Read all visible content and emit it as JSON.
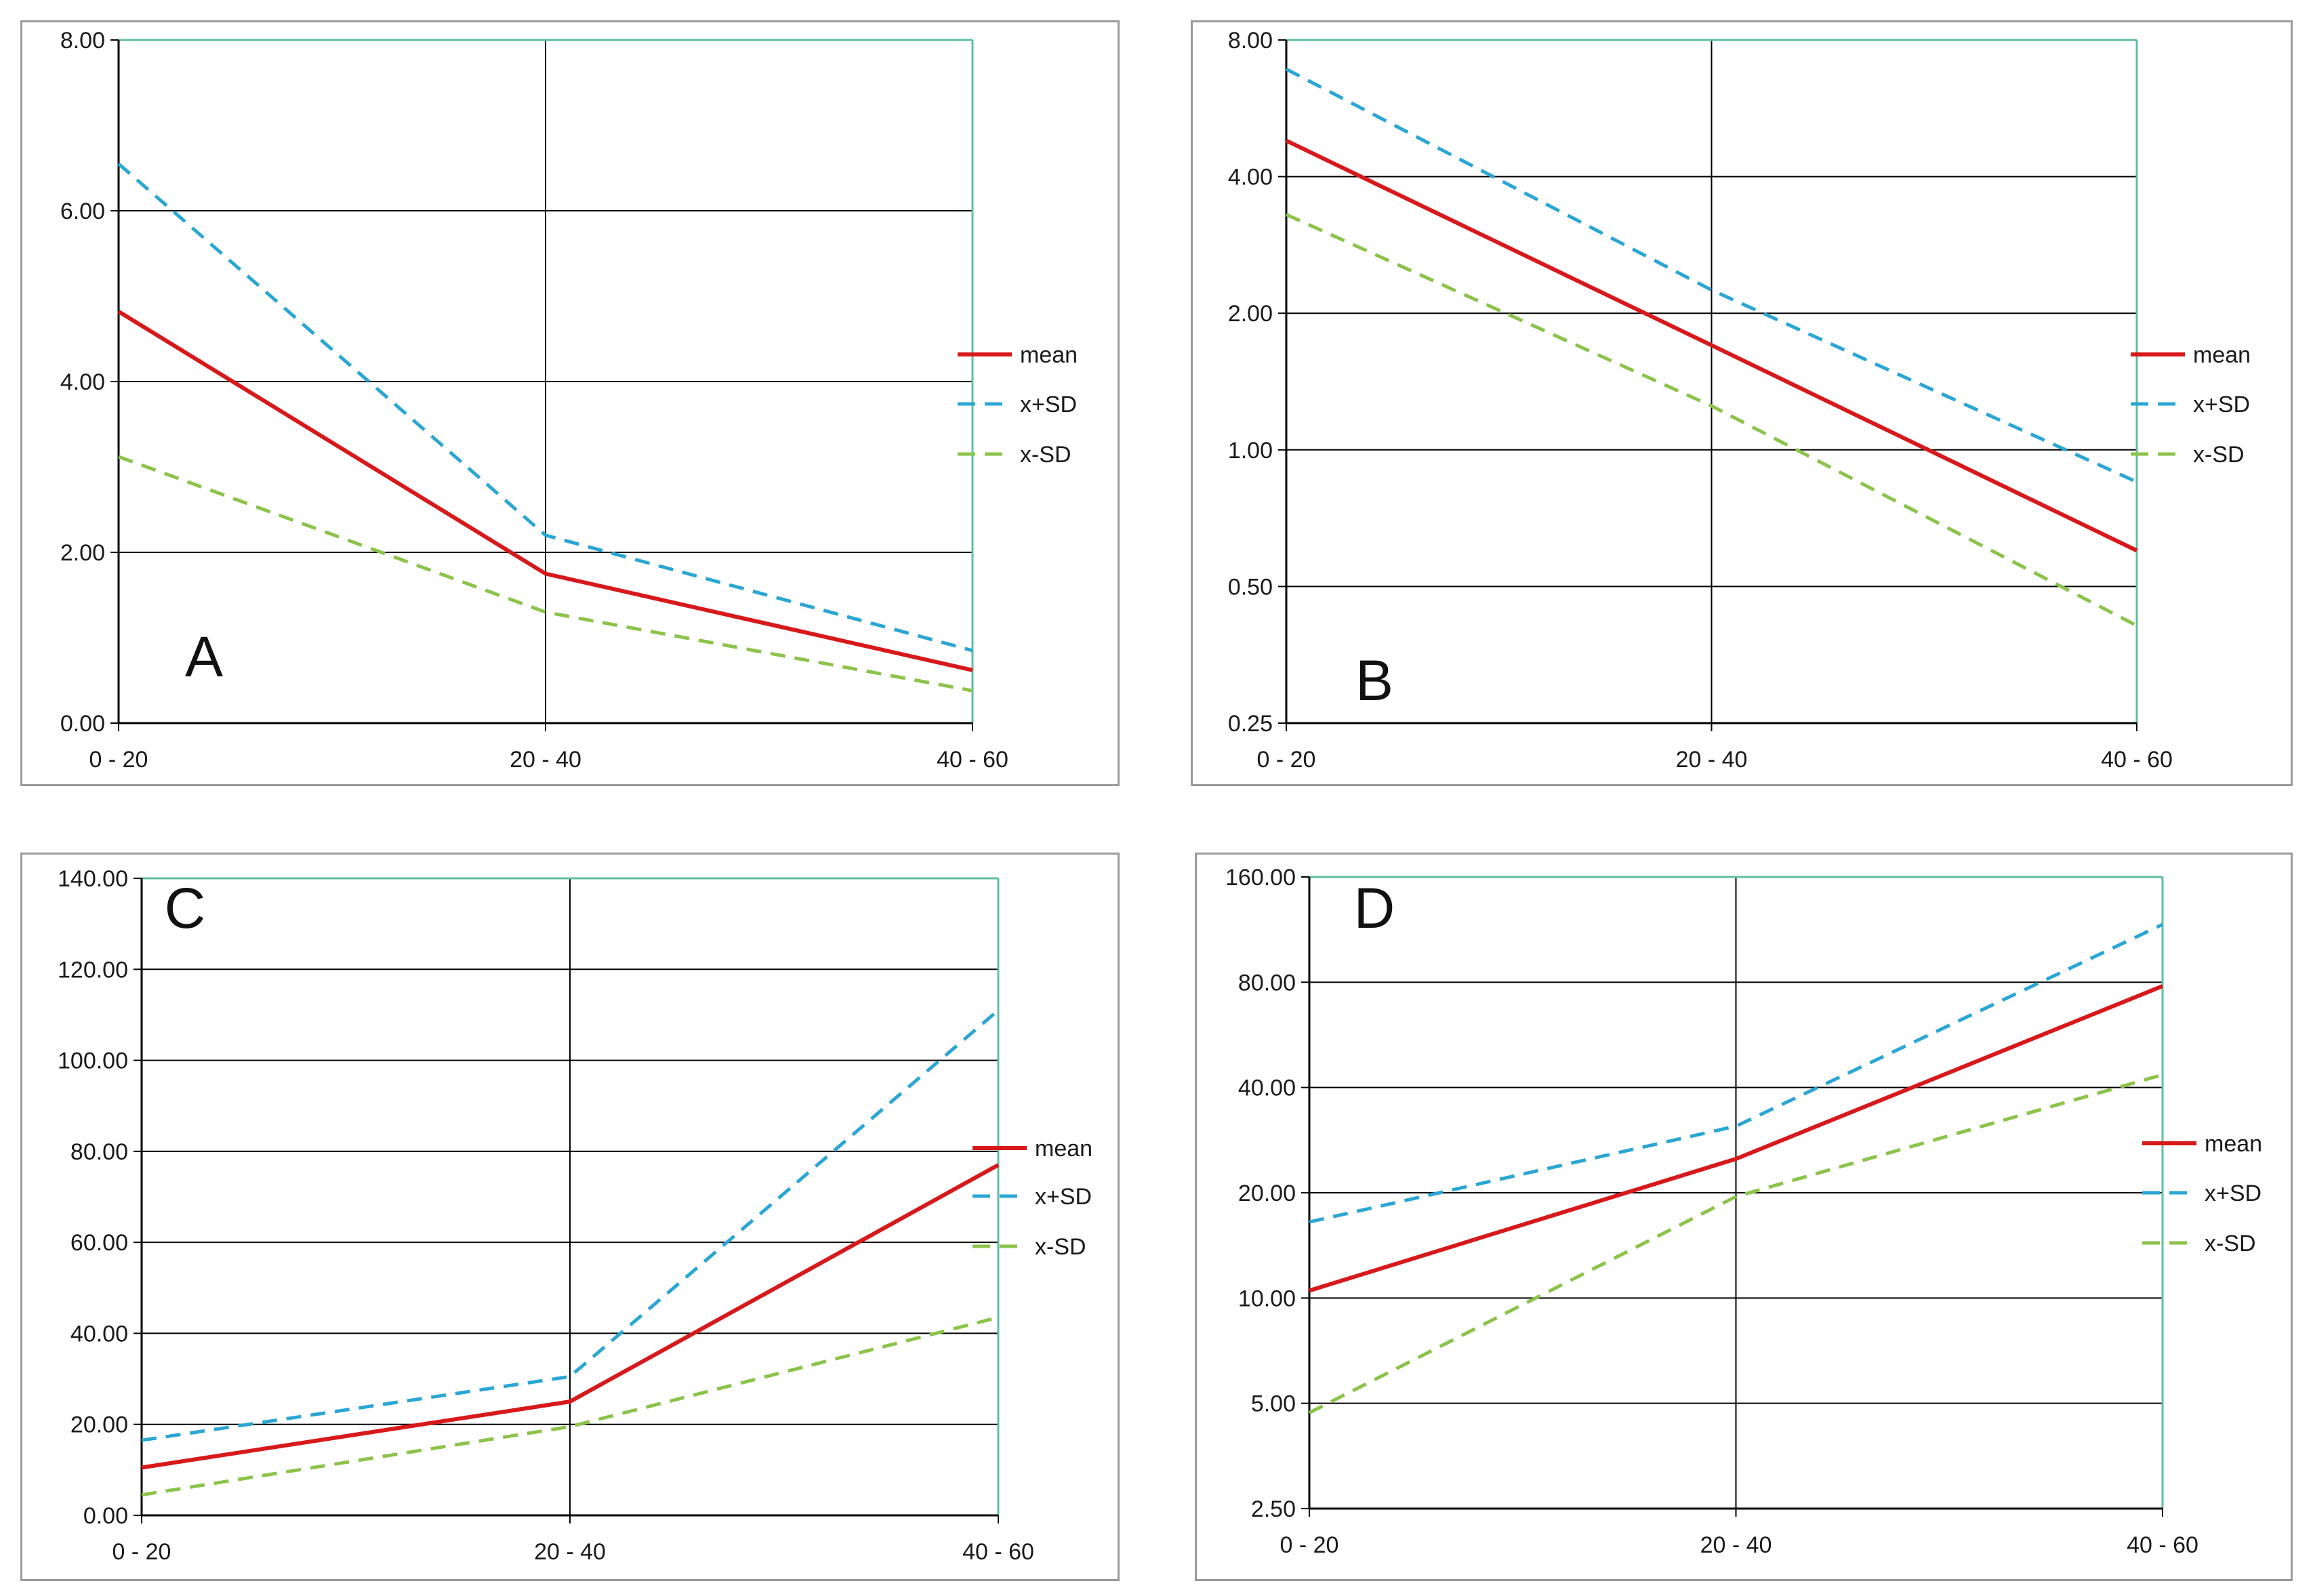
{
  "colors": {
    "mean": "#d7191c",
    "plus_sd": "#2aa6d4",
    "minus_sd": "#8bc34a",
    "grid": "#000000",
    "frame": "#5fbf9f"
  },
  "chart_data": [
    {
      "id": "A",
      "type": "line",
      "scale": "linear",
      "panel_label": "A",
      "categories": [
        "0 - 20",
        "20 - 40",
        "40 - 60"
      ],
      "yticks": [
        "0.00",
        "2.00",
        "4.00",
        "6.00",
        "8.00"
      ],
      "ylim": [
        0,
        8
      ],
      "legend": [
        "mean",
        "x+SD",
        "x-SD"
      ],
      "series": [
        {
          "name": "mean",
          "key": "mean",
          "values": [
            4.82,
            1.75,
            0.62
          ]
        },
        {
          "name": "x+SD",
          "key": "plus_sd",
          "values": [
            6.55,
            2.2,
            0.85
          ]
        },
        {
          "name": "x-SD",
          "key": "minus_sd",
          "values": [
            3.12,
            1.3,
            0.38
          ]
        }
      ]
    },
    {
      "id": "B",
      "type": "line",
      "scale": "log2",
      "panel_label": "B",
      "categories": [
        "0 - 20",
        "20 - 40",
        "40 - 60"
      ],
      "yticks": [
        "0.25",
        "0.50",
        "1.00",
        "2.00",
        "4.00",
        "8.00"
      ],
      "ylim": [
        0.25,
        8
      ],
      "legend": [
        "mean",
        "x+SD",
        "x-SD"
      ],
      "series": [
        {
          "name": "mean",
          "key": "mean",
          "values": [
            4.8,
            1.7,
            0.6
          ]
        },
        {
          "name": "x+SD",
          "key": "plus_sd",
          "values": [
            6.9,
            2.25,
            0.85
          ]
        },
        {
          "name": "x-SD",
          "key": "minus_sd",
          "values": [
            3.3,
            1.25,
            0.41
          ]
        }
      ]
    },
    {
      "id": "C",
      "type": "line",
      "scale": "linear",
      "panel_label": "C",
      "categories": [
        "0 - 20",
        "20 - 40",
        "40 - 60"
      ],
      "yticks": [
        "0.00",
        "20.00",
        "40.00",
        "60.00",
        "80.00",
        "100.00",
        "120.00",
        "140.00"
      ],
      "ylim": [
        0,
        140
      ],
      "legend": [
        "mean",
        "x+SD",
        "x-SD"
      ],
      "series": [
        {
          "name": "mean",
          "key": "mean",
          "values": [
            10.5,
            25,
            77
          ]
        },
        {
          "name": "x+SD",
          "key": "plus_sd",
          "values": [
            16.5,
            30.5,
            111
          ]
        },
        {
          "name": "x-SD",
          "key": "minus_sd",
          "values": [
            4.5,
            19.5,
            43.5
          ]
        }
      ]
    },
    {
      "id": "D",
      "type": "line",
      "scale": "log2",
      "panel_label": "D",
      "categories": [
        "0 - 20",
        "20 - 40",
        "40 - 60"
      ],
      "yticks": [
        "2.50",
        "5.00",
        "10.00",
        "20.00",
        "40.00",
        "80.00",
        "160.00"
      ],
      "ylim": [
        2.5,
        160
      ],
      "legend": [
        "mean",
        "x+SD",
        "x-SD"
      ],
      "series": [
        {
          "name": "mean",
          "key": "mean",
          "values": [
            10.5,
            25,
            78
          ]
        },
        {
          "name": "x+SD",
          "key": "plus_sd",
          "values": [
            16.5,
            31,
            117
          ]
        },
        {
          "name": "x-SD",
          "key": "minus_sd",
          "values": [
            4.7,
            19.5,
            43.5
          ]
        }
      ]
    }
  ]
}
